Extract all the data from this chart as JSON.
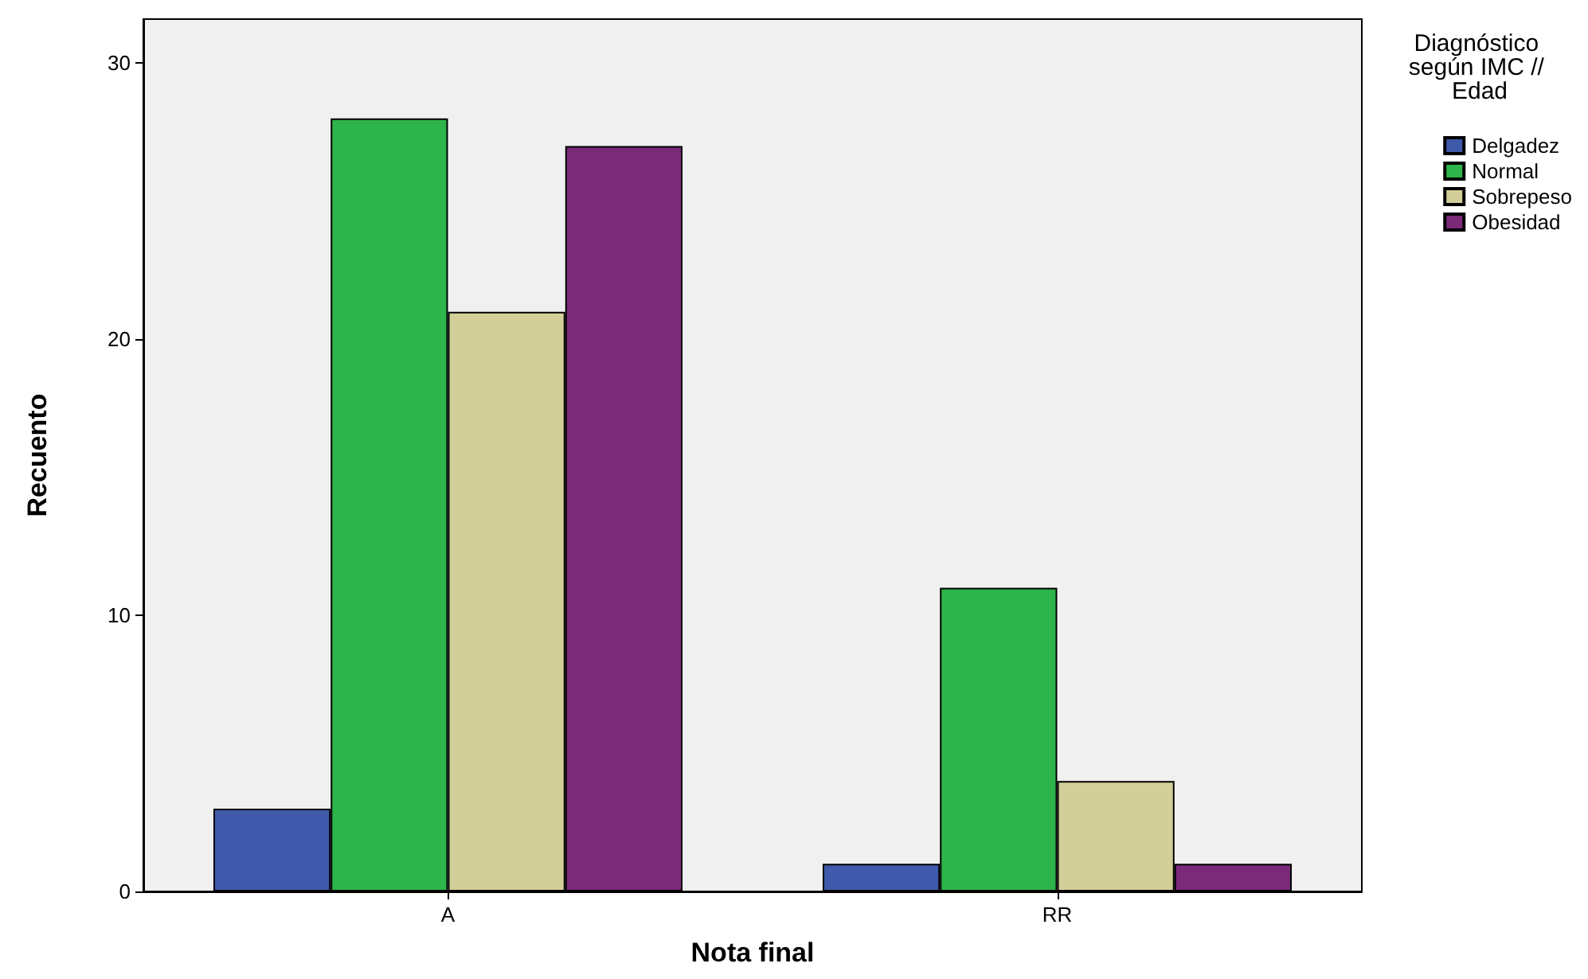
{
  "chart_data": {
    "type": "bar",
    "xlabel": "Nota final",
    "ylabel": "Recuento",
    "legend_title": "Diagnóstico según IMC // Edad",
    "categories": [
      "A",
      "RR"
    ],
    "series": [
      {
        "name": "Delgadez",
        "color": "#3f5aab",
        "values": [
          3,
          1
        ]
      },
      {
        "name": "Normal",
        "color": "#2db44a",
        "values": [
          28,
          11
        ]
      },
      {
        "name": "Sobrepeso",
        "color": "#d3cf98",
        "values": [
          21,
          4
        ]
      },
      {
        "name": "Obesidad",
        "color": "#7b2a7a",
        "values": [
          27,
          1
        ]
      }
    ],
    "ylim": [
      0,
      31.6
    ],
    "yticks": [
      0,
      10,
      20,
      30
    ],
    "grid": false,
    "legend": "top right"
  }
}
